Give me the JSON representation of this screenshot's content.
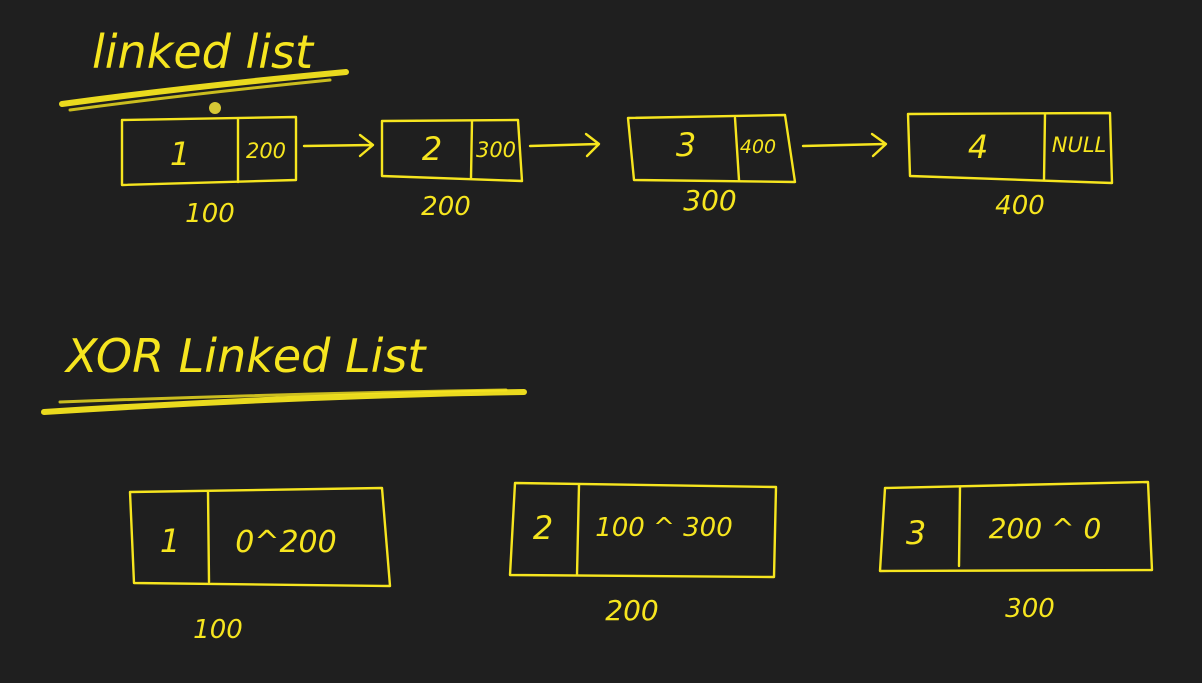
{
  "colors": {
    "background": "#1f1f1f",
    "ink": "#f6e51f"
  },
  "linked_list": {
    "title": "linked list",
    "nodes": [
      {
        "value": "1",
        "next": "200",
        "address": "100"
      },
      {
        "value": "2",
        "next": "300",
        "address": "200"
      },
      {
        "value": "3",
        "next": "400",
        "address": "300"
      },
      {
        "value": "4",
        "next": "NULL",
        "address": "400"
      }
    ]
  },
  "xor_linked_list": {
    "title": "XOR Linked List",
    "nodes": [
      {
        "value": "1",
        "xor": "0^200",
        "address": "100"
      },
      {
        "value": "2",
        "xor": "100 ^ 300",
        "address": "200"
      },
      {
        "value": "3",
        "xor": "200 ^ 0",
        "address": "300"
      }
    ]
  }
}
